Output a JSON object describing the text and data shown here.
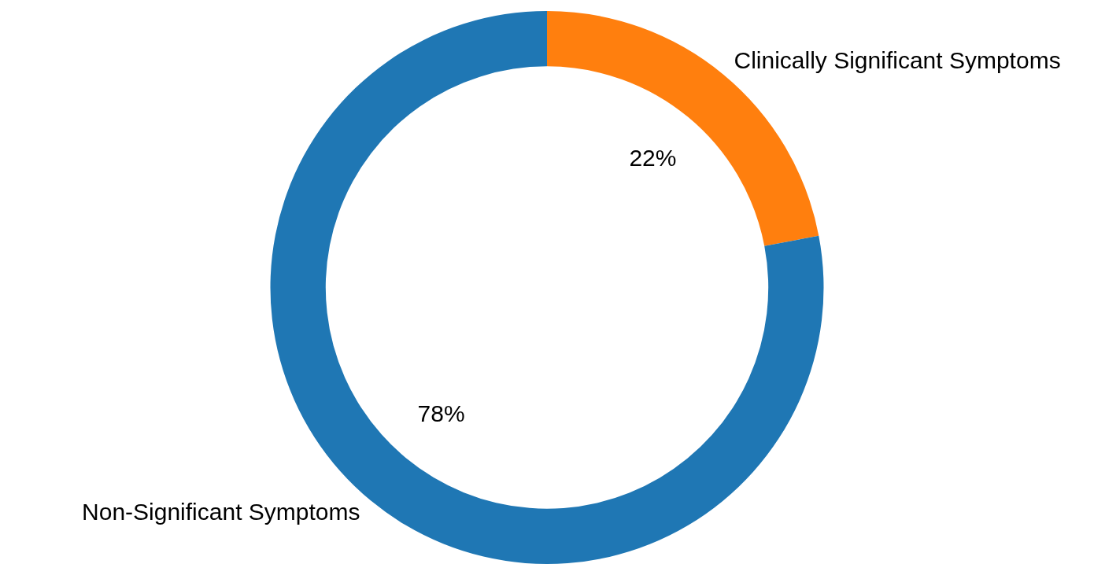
{
  "chart_data": {
    "type": "donut",
    "categories": [
      "Clinically Significant Symptoms",
      "Non-Significant Symptoms"
    ],
    "values": [
      22,
      78
    ],
    "colors": [
      "#ff7f0e",
      "#1f77b4"
    ],
    "value_labels": [
      "22%",
      "78%"
    ],
    "legend": false
  }
}
